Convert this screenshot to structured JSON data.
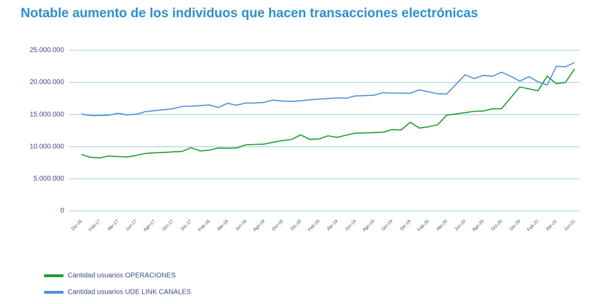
{
  "chart_data": {
    "type": "line",
    "title": "Notable aumento de los individuos que hacen transacciones electrónicas",
    "categories": [
      "Dic-16",
      null,
      "Feb-17",
      null,
      "Abr-17",
      null,
      "Jun-17",
      null,
      "Ago-17",
      null,
      "Oct-17",
      null,
      "Dic-17",
      null,
      "Feb-18",
      null,
      "Abr-18",
      null,
      "Jun-18",
      null,
      "Ago-18",
      null,
      "Oct-18",
      null,
      "Dic-18",
      null,
      "Feb-19",
      null,
      "Abr-19",
      null,
      "Jun-19",
      null,
      "Ago-19",
      null,
      "Oct-19",
      null,
      "Dic-19",
      null,
      "Feb-20",
      null,
      "Abr-20",
      null,
      "Jun-20",
      null,
      "Ago-20",
      null,
      "Oct-20",
      null,
      "Dic-20",
      null,
      "Feb-21",
      null,
      "Abr-21",
      null,
      "Jun-21"
    ],
    "series": [
      {
        "name": "Cantidad usuarios OPERACIONES",
        "color": "#1a9b2e",
        "values": [
          8800000,
          8350000,
          8250000,
          8550000,
          8450000,
          8400000,
          8650000,
          8950000,
          9050000,
          9100000,
          9200000,
          9250000,
          9850000,
          9350000,
          9450000,
          9800000,
          9750000,
          9800000,
          10300000,
          10350000,
          10400000,
          10700000,
          10950000,
          11100000,
          11850000,
          11150000,
          11200000,
          11700000,
          11450000,
          11800000,
          12100000,
          12150000,
          12200000,
          12250000,
          12650000,
          12600000,
          13800000,
          12900000,
          13100000,
          13400000,
          14900000,
          15100000,
          15300000,
          15500000,
          15550000,
          15900000,
          15900000,
          17600000,
          19300000,
          19000000,
          18700000,
          21000000,
          19800000,
          20000000,
          22100000
        ]
      },
      {
        "name": "Cantidad usuarios UDE LINK CANALES",
        "color": "#4a90d9",
        "values": [
          15100000,
          14850000,
          14850000,
          14900000,
          15200000,
          14950000,
          15050000,
          15450000,
          15600000,
          15750000,
          15900000,
          16250000,
          16300000,
          16400000,
          16500000,
          16100000,
          16750000,
          16450000,
          16800000,
          16800000,
          16900000,
          17250000,
          17100000,
          17050000,
          17150000,
          17300000,
          17400000,
          17500000,
          17600000,
          17550000,
          17900000,
          17950000,
          18000000,
          18400000,
          18350000,
          18350000,
          18300000,
          18850000,
          18550000,
          18250000,
          18200000,
          19700000,
          21200000,
          20600000,
          21100000,
          20950000,
          21600000,
          20950000,
          20200000,
          20900000,
          20100000,
          19600000,
          22500000,
          22450000,
          23100000
        ]
      }
    ],
    "ylim": [
      0,
      25000000
    ],
    "yticks": [
      0,
      {
        "value": 5000000,
        "label": "5.000.000"
      },
      {
        "value": 10000000,
        "label": "10.000.000"
      },
      {
        "value": 15000000,
        "label": "15.000.000"
      },
      {
        "value": 20000000,
        "label": "20.000.000"
      },
      {
        "value": 25000000,
        "label": "25.000.000"
      }
    ],
    "grid": true
  }
}
